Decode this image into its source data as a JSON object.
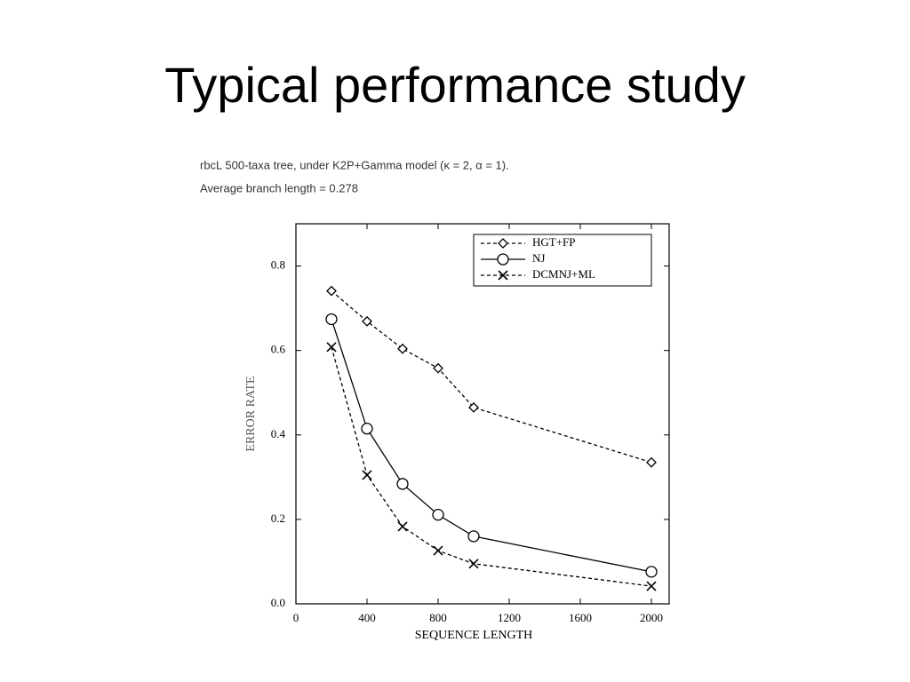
{
  "slide_title": "Typical performance study",
  "chart_data": {
    "type": "line",
    "title": "rbcL 500-taxa tree, under K2P+Gamma model (κ = 2, α = 1).",
    "subtitle": "Average branch length = 0.278",
    "x_label": "SEQUENCE LENGTH",
    "y_label": "ERROR RATE",
    "x": [
      200,
      400,
      600,
      800,
      1000,
      2000
    ],
    "xlim": [
      0,
      2100
    ],
    "xticks": [
      0,
      400,
      800,
      1200,
      1600,
      2000
    ],
    "ylim": [
      0,
      0.9
    ],
    "yticks": [
      {
        "value": 0,
        "label": "0.0"
      },
      0.2,
      0.4,
      0.6,
      0.8
    ],
    "legend": "upper right",
    "series": [
      {
        "name": "HGT+FP",
        "color": "#000000",
        "marker": "diamond",
        "dashed": true,
        "values": [
          0.741,
          0.669,
          0.604,
          0.558,
          0.465,
          0.335
        ]
      },
      {
        "name": "NJ",
        "color": "#000000",
        "marker": "circle",
        "dashed": false,
        "values": [
          0.674,
          0.415,
          0.284,
          0.211,
          0.16,
          0.076
        ]
      },
      {
        "name": "DCMNJ+ML",
        "color": "#000000",
        "marker": "x",
        "dashed": true,
        "values": [
          0.608,
          0.305,
          0.183,
          0.126,
          0.095,
          0.042
        ]
      }
    ]
  }
}
